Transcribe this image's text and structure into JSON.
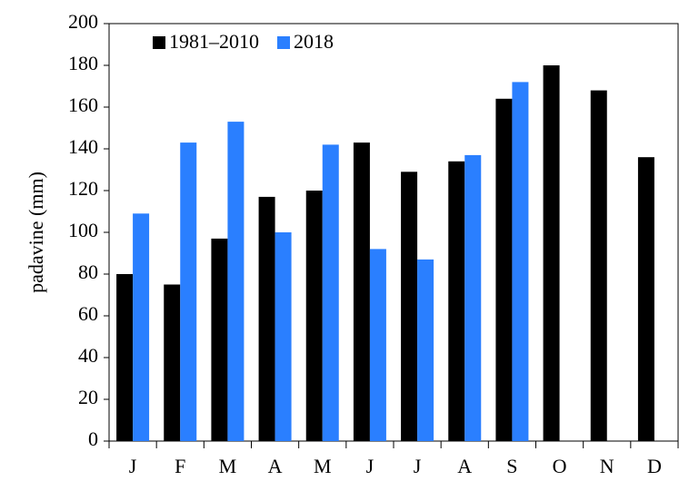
{
  "chart_data": {
    "type": "bar",
    "ylabel": "padavine (mm)",
    "categories": [
      "J",
      "F",
      "M",
      "A",
      "M",
      "J",
      "J",
      "A",
      "S",
      "O",
      "N",
      "D"
    ],
    "series": [
      {
        "name": "1981–2010",
        "color": "#000000",
        "values": [
          80,
          75,
          97,
          117,
          120,
          143,
          129,
          134,
          164,
          180,
          168,
          136
        ]
      },
      {
        "name": "2018",
        "color": "#2a7fff",
        "values": [
          109,
          143,
          153,
          100,
          142,
          92,
          87,
          137,
          172,
          null,
          null,
          null
        ]
      }
    ],
    "ylim": [
      0,
      200
    ],
    "yticks": [
      0,
      20,
      40,
      60,
      80,
      100,
      120,
      140,
      160,
      180,
      200
    ],
    "legend": "top-left"
  }
}
